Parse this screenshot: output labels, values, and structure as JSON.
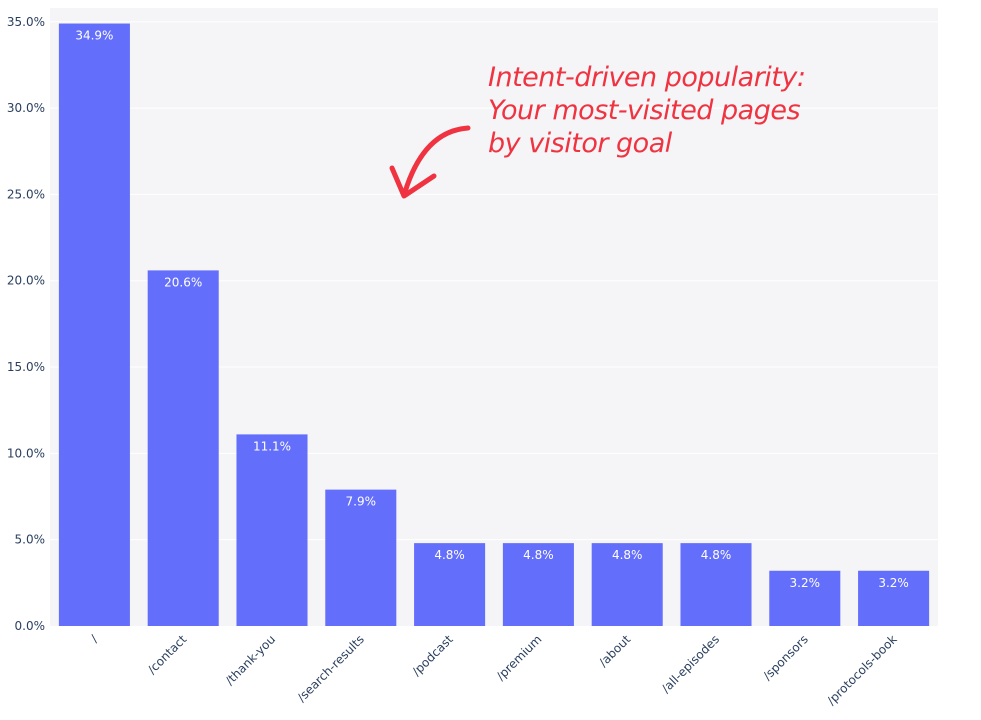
{
  "chart_data": {
    "type": "bar",
    "title": "",
    "xlabel": "",
    "ylabel": "",
    "categories": [
      "/",
      "/contact",
      "/thank-you",
      "/search-results",
      "/podcast",
      "/premium",
      "/about",
      "/all-episodes",
      "/sponsors",
      "/protocols-book"
    ],
    "values": [
      34.9,
      20.6,
      11.1,
      7.9,
      4.8,
      4.8,
      4.8,
      4.8,
      3.2,
      3.2
    ],
    "value_labels": [
      "34.9%",
      "20.6%",
      "11.1%",
      "7.9%",
      "4.8%",
      "4.8%",
      "4.8%",
      "4.8%",
      "3.2%",
      "3.2%"
    ],
    "ylim": [
      0,
      35.8
    ],
    "yticks": [
      0,
      5,
      10,
      15,
      20,
      25,
      30,
      35
    ],
    "ytick_labels": [
      "0.0%",
      "5.0%",
      "10.0%",
      "15.0%",
      "20.0%",
      "25.0%",
      "30.0%",
      "35.0%"
    ],
    "grid": true,
    "annotation": [
      "Intent-driven popularity:",
      "Your most-visited pages",
      "by visitor goal"
    ],
    "colors": {
      "bar": "#636efa",
      "plot_bg": "#f5f5f8",
      "grid": "#ffffff",
      "tick_text": "#2a3f5f",
      "annotation": "#ef3340"
    }
  }
}
